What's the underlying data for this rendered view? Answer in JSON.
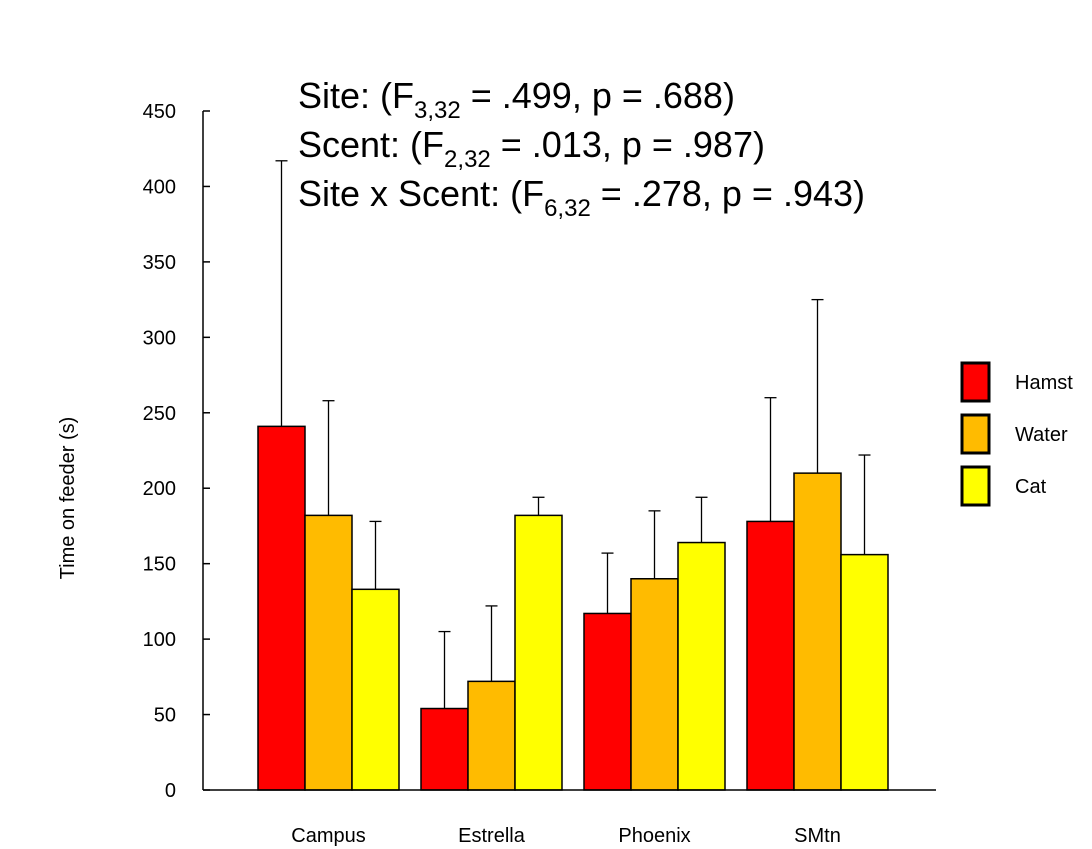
{
  "chart_data": {
    "type": "bar",
    "title": "",
    "xlabel": "",
    "ylabel": "Time on feeder (s)",
    "ylim": [
      0,
      450
    ],
    "yticks": [
      "0",
      "50",
      "100",
      "150",
      "200",
      "250",
      "300",
      "350",
      "400",
      "450"
    ],
    "categories": [
      "Campus",
      "Estrella",
      "Phoenix",
      "SMtn"
    ],
    "series": [
      {
        "name": "Hamst",
        "color": "#ff0000",
        "values": [
          241,
          54,
          117,
          178
        ],
        "error": [
          176,
          51,
          40,
          82
        ]
      },
      {
        "name": "Water",
        "color": "#ffbb00",
        "values": [
          182,
          72,
          140,
          210
        ],
        "error": [
          76,
          50,
          45,
          115
        ]
      },
      {
        "name": "Cat",
        "color": "#ffff00",
        "values": [
          133,
          182,
          164,
          156
        ],
        "error": [
          45,
          12,
          30,
          66
        ]
      }
    ],
    "legend_position": "right",
    "grid": false,
    "annotations": [
      {
        "label": "Site: (F",
        "sub": "3,32",
        "rest": " = .499, p = .688)"
      },
      {
        "label": "Scent: (F",
        "sub": "2,32",
        "rest": " = .013, p = .987)"
      },
      {
        "label": "Site x Scent: (F",
        "sub": "6,32",
        "rest": " = .278, p = .943)"
      }
    ]
  }
}
